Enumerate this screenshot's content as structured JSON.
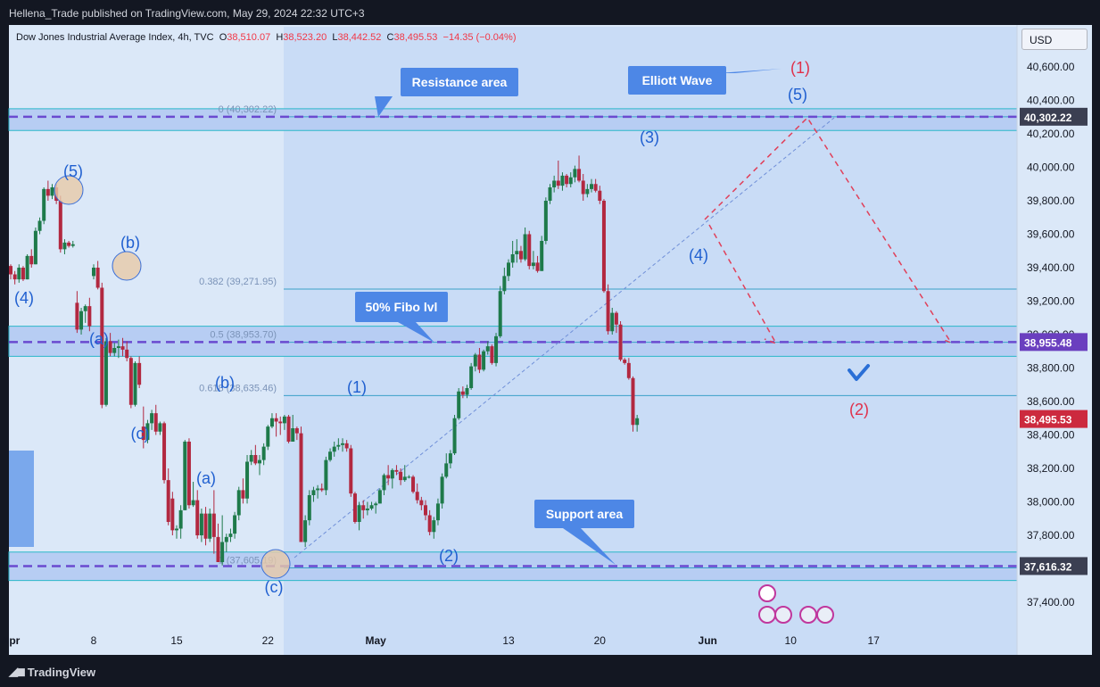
{
  "header": {
    "published": "Hellena_Trade published on TradingView.com, May 29, 2024 22:32 UTC+3"
  },
  "symbol": {
    "name": "Dow Jones Industrial Average Index, 4h, TVC",
    "open_label": "O",
    "open": "38,510.07",
    "high_label": "H",
    "high": "38,523.20",
    "low_label": "L",
    "low": "38,442.52",
    "close_label": "C",
    "close": "38,495.53",
    "change": "−14.35 (−0.04%)"
  },
  "currency": "USD",
  "footer": {
    "brand": "TradingView"
  },
  "colors": {
    "up": "#1e7a4a",
    "down": "#b22840",
    "label_blue": "#1f5fd0",
    "label_red": "#e0304a",
    "dashed_purple": "#6a4ad0",
    "callout": "#4d87e6",
    "price_red": "#cc2a3e",
    "price_purple": "#6a3fbf"
  },
  "chart_data": {
    "type": "candlestick",
    "timeframe": "4h",
    "ylim": [
      37270,
      40770
    ],
    "y_ticks": [
      37400,
      37600,
      37800,
      38000,
      38200,
      38400,
      38600,
      38800,
      39000,
      39200,
      39400,
      39600,
      39800,
      40000,
      40200,
      40400,
      40600
    ],
    "y_tick_labels": [
      "37,400.00",
      "37,600.00",
      "37,800.00",
      "38,000.00",
      "38,200.00",
      "38,400.00",
      "38,600.00",
      "38,800.00",
      "39,000.00",
      "39,200.00",
      "39,400.00",
      "39,600.00",
      "39,800.00",
      "40,000.00",
      "40,200.00",
      "40,400.00",
      "40,600.00"
    ],
    "x_ticks": [
      "Apr",
      "8",
      "15",
      "22",
      "May",
      "13",
      "20",
      "Jun",
      "10",
      "17"
    ],
    "x_tick_index": [
      0,
      20,
      40,
      62,
      88,
      120,
      142,
      168,
      188,
      208
    ],
    "candles": [
      [
        39410,
        39420,
        39330,
        39360
      ],
      [
        39360,
        39380,
        39300,
        39330
      ],
      [
        39330,
        39420,
        39310,
        39400
      ],
      [
        39400,
        39410,
        39320,
        39330
      ],
      [
        39330,
        39480,
        39330,
        39470
      ],
      [
        39470,
        39510,
        39400,
        39420
      ],
      [
        39420,
        39640,
        39420,
        39620
      ],
      [
        39620,
        39700,
        39600,
        39680
      ],
      [
        39680,
        39880,
        39660,
        39870
      ],
      [
        39870,
        39920,
        39800,
        39830
      ],
      [
        39830,
        39900,
        39810,
        39880
      ],
      [
        39880,
        39900,
        39780,
        39800
      ],
      [
        39800,
        39830,
        39490,
        39510
      ],
      [
        39510,
        39570,
        39480,
        39550
      ],
      [
        39550,
        39560,
        39520,
        39530
      ],
      [
        39530,
        39560,
        39520,
        39540
      ],
      [
        39190,
        39260,
        39010,
        39030
      ],
      [
        39030,
        39160,
        39000,
        39140
      ],
      [
        39140,
        39180,
        39070,
        39170
      ],
      [
        39170,
        39220,
        39020,
        39050
      ],
      [
        39350,
        39420,
        39330,
        39400
      ],
      [
        39400,
        39440,
        39270,
        39280
      ],
      [
        39280,
        39310,
        38560,
        38580
      ],
      [
        38580,
        38980,
        38570,
        38960
      ],
      [
        38960,
        39010,
        38870,
        38890
      ],
      [
        38890,
        38950,
        38870,
        38920
      ],
      [
        38920,
        38970,
        38860,
        38930
      ],
      [
        38930,
        38980,
        38870,
        38910
      ],
      [
        38910,
        38960,
        38840,
        38860
      ],
      [
        38860,
        38870,
        38560,
        38580
      ],
      [
        38580,
        38840,
        38570,
        38830
      ],
      [
        38830,
        38870,
        38680,
        38700
      ],
      [
        38450,
        38570,
        38320,
        38370
      ],
      [
        38370,
        38490,
        38350,
        38470
      ],
      [
        38470,
        38550,
        38430,
        38530
      ],
      [
        38530,
        38580,
        38400,
        38420
      ],
      [
        38420,
        38480,
        38400,
        38470
      ],
      [
        38470,
        38480,
        38110,
        38130
      ],
      [
        38130,
        38200,
        37860,
        37880
      ],
      [
        38020,
        38060,
        37800,
        37830
      ],
      [
        37830,
        37860,
        37780,
        37840
      ],
      [
        37840,
        37980,
        37780,
        37950
      ],
      [
        37950,
        38370,
        37950,
        38360
      ],
      [
        38360,
        38380,
        37960,
        37980
      ],
      [
        37980,
        38120,
        37970,
        38010
      ],
      [
        38010,
        38070,
        37780,
        37800
      ],
      [
        37800,
        37960,
        37760,
        37930
      ],
      [
        37930,
        37970,
        37740,
        37780
      ],
      [
        37780,
        37960,
        37760,
        37930
      ],
      [
        37930,
        38070,
        37690,
        37790
      ],
      [
        37790,
        37870,
        37640,
        37640
      ],
      [
        37640,
        37920,
        37620,
        37760
      ],
      [
        37760,
        37810,
        37700,
        37790
      ],
      [
        37790,
        37840,
        37760,
        37810
      ],
      [
        37810,
        37940,
        37780,
        37920
      ],
      [
        37920,
        38090,
        37890,
        38070
      ],
      [
        38070,
        38140,
        37990,
        38020
      ],
      [
        38020,
        38280,
        37990,
        38240
      ],
      [
        38240,
        38310,
        38220,
        38280
      ],
      [
        38280,
        38340,
        38220,
        38230
      ],
      [
        38230,
        38280,
        38160,
        38250
      ],
      [
        38250,
        38350,
        38220,
        38330
      ],
      [
        38330,
        38460,
        38310,
        38450
      ],
      [
        38450,
        38530,
        38440,
        38500
      ],
      [
        38500,
        38530,
        38390,
        38480
      ],
      [
        38480,
        38510,
        38400,
        38470
      ],
      [
        38470,
        38520,
        38430,
        38510
      ],
      [
        38510,
        38520,
        38350,
        38360
      ],
      [
        38360,
        38520,
        38360,
        38440
      ],
      [
        38440,
        38450,
        38370,
        38410
      ],
      [
        38410,
        38450,
        37760,
        37760
      ],
      [
        37760,
        37920,
        37730,
        37890
      ],
      [
        37890,
        38070,
        37860,
        38040
      ],
      [
        38040,
        38090,
        38000,
        38070
      ],
      [
        38070,
        38100,
        38020,
        38080
      ],
      [
        38080,
        38110,
        38060,
        38070
      ],
      [
        38070,
        38270,
        38040,
        38250
      ],
      [
        38250,
        38320,
        38240,
        38300
      ],
      [
        38300,
        38360,
        38270,
        38330
      ],
      [
        38330,
        38380,
        38310,
        38340
      ],
      [
        38340,
        38380,
        38300,
        38350
      ],
      [
        38350,
        38370,
        38300,
        38320
      ],
      [
        38320,
        38340,
        38030,
        38050
      ],
      [
        38050,
        38060,
        37870,
        37880
      ],
      [
        37880,
        38000,
        37830,
        37980
      ],
      [
        37980,
        38010,
        37900,
        37950
      ],
      [
        37950,
        38000,
        37920,
        37960
      ],
      [
        37960,
        38000,
        37950,
        37980
      ],
      [
        37980,
        38000,
        37930,
        37990
      ],
      [
        37990,
        38080,
        37990,
        38070
      ],
      [
        38070,
        38170,
        38040,
        38160
      ],
      [
        38160,
        38220,
        38100,
        38140
      ],
      [
        38140,
        38200,
        38080,
        38190
      ],
      [
        38190,
        38220,
        38160,
        38180
      ],
      [
        38180,
        38200,
        38100,
        38130
      ],
      [
        38130,
        38220,
        38120,
        38150
      ],
      [
        38150,
        38160,
        38140,
        38150
      ],
      [
        38150,
        38160,
        38050,
        38060
      ],
      [
        38060,
        38110,
        37990,
        38010
      ],
      [
        38010,
        38030,
        37950,
        37980
      ],
      [
        37980,
        38010,
        37890,
        37920
      ],
      [
        37920,
        37950,
        37800,
        37820
      ],
      [
        37820,
        37910,
        37780,
        37890
      ],
      [
        37890,
        38020,
        37860,
        37990
      ],
      [
        37990,
        38170,
        37960,
        38150
      ],
      [
        38150,
        38290,
        38140,
        38230
      ],
      [
        38230,
        38310,
        38200,
        38290
      ],
      [
        38290,
        38520,
        38280,
        38500
      ],
      [
        38500,
        38680,
        38490,
        38660
      ],
      [
        38660,
        38690,
        38620,
        38640
      ],
      [
        38640,
        38700,
        38620,
        38680
      ],
      [
        38680,
        38830,
        38670,
        38810
      ],
      [
        38810,
        38890,
        38780,
        38880
      ],
      [
        38880,
        38920,
        38770,
        38790
      ],
      [
        38790,
        38910,
        38780,
        38900
      ],
      [
        38900,
        38960,
        38880,
        38930
      ],
      [
        38930,
        38940,
        38820,
        38830
      ],
      [
        38830,
        39010,
        38810,
        38990
      ],
      [
        38990,
        39290,
        38980,
        39260
      ],
      [
        39260,
        39400,
        39240,
        39350
      ],
      [
        39350,
        39450,
        39320,
        39430
      ],
      [
        39430,
        39560,
        39400,
        39480
      ],
      [
        39480,
        39570,
        39430,
        39500
      ],
      [
        39500,
        39530,
        39430,
        39450
      ],
      [
        39450,
        39640,
        39440,
        39600
      ],
      [
        39600,
        39620,
        39390,
        39410
      ],
      [
        39410,
        39500,
        39390,
        39430
      ],
      [
        39430,
        39470,
        39370,
        39380
      ],
      [
        39380,
        39590,
        39380,
        39560
      ],
      [
        39560,
        39820,
        39540,
        39800
      ],
      [
        39800,
        39900,
        39780,
        39880
      ],
      [
        39880,
        39950,
        39850,
        39920
      ],
      [
        39920,
        40040,
        39870,
        39890
      ],
      [
        39890,
        39970,
        39860,
        39950
      ],
      [
        39950,
        39960,
        39880,
        39900
      ],
      [
        39900,
        39970,
        39880,
        39940
      ],
      [
        39940,
        40010,
        39910,
        39990
      ],
      [
        39990,
        40070,
        39910,
        39920
      ],
      [
        39920,
        39960,
        39800,
        39840
      ],
      [
        39840,
        39900,
        39820,
        39870
      ],
      [
        39870,
        39930,
        39850,
        39900
      ],
      [
        39900,
        39930,
        39850,
        39860
      ],
      [
        39860,
        39890,
        39780,
        39800
      ],
      [
        39800,
        39810,
        39250,
        39260
      ],
      [
        39260,
        39300,
        39000,
        39020
      ],
      [
        39020,
        39160,
        39000,
        39130
      ],
      [
        39130,
        39140,
        39010,
        39060
      ],
      [
        39060,
        39080,
        38840,
        38850
      ],
      [
        38850,
        38860,
        38820,
        38830
      ],
      [
        38830,
        38860,
        38730,
        38740
      ],
      [
        38740,
        38750,
        38420,
        38460
      ],
      [
        38460,
        38520,
        38420,
        38500
      ]
    ],
    "fib_levels": [
      {
        "label": "0 (40,302.22)",
        "value": 40302.22
      },
      {
        "label": "0.382 (39,271.95)",
        "value": 39271.95
      },
      {
        "label": "0.5 (38,953.70)",
        "value": 38953.7
      },
      {
        "label": "0.618 (38,635.46)",
        "value": 38635.46
      },
      {
        "label": "1 (37,605.19)",
        "value": 37605.19
      }
    ],
    "price_labels": [
      {
        "text": "40,302.22",
        "value": 40302.22
      },
      {
        "text": "38,955.48",
        "value": 38955.48
      },
      {
        "text": "38,495.53",
        "value": 38495.53
      },
      {
        "text": "37,616.32",
        "value": 37616.32
      }
    ],
    "zones": [
      {
        "name": "resistance",
        "from": 40220,
        "to": 40350
      },
      {
        "name": "fibo50",
        "from": 38870,
        "to": 39050
      },
      {
        "name": "support",
        "from": 37530,
        "to": 37700
      }
    ],
    "wave_labels": [
      "(5)",
      "(4)",
      "(b)",
      "(a)",
      "(c)",
      "(b)",
      "(a)",
      "(c)",
      "(1)",
      "(2)",
      "(3)",
      "(4)",
      "(5)",
      "(1)",
      "(2)"
    ],
    "callouts": [
      "Resistance area",
      "50% Fibo lvl",
      "Support area",
      "Elliott Wave"
    ]
  }
}
